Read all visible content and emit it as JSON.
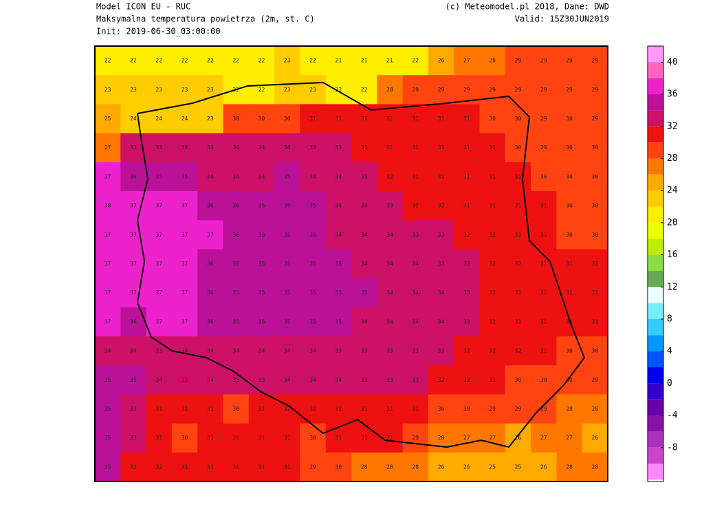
{
  "header": {
    "model": "Model ICON EU - RUC",
    "field": "Maksymalna temperatura powietrza (2m, st. C)",
    "init": "Init: 2019-06-30_03:00:00",
    "credit": "(c) Meteomodel.pl 2018, Dane: DWD",
    "valid": "Valid: 15Z30JUN2019"
  },
  "grid": [
    [
      22,
      22,
      22,
      22,
      22,
      22,
      22,
      23,
      22,
      21,
      21,
      21,
      22,
      26,
      27,
      28,
      29,
      29,
      29,
      29
    ],
    [
      23,
      23,
      23,
      23,
      23,
      22,
      22,
      23,
      23,
      22,
      22,
      28,
      29,
      29,
      29,
      29,
      29,
      29,
      29,
      29
    ],
    [
      25,
      24,
      24,
      24,
      23,
      30,
      30,
      30,
      31,
      31,
      31,
      31,
      31,
      31,
      31,
      30,
      30,
      29,
      30,
      29
    ],
    [
      27,
      33,
      33,
      34,
      34,
      34,
      34,
      34,
      33,
      33,
      31,
      31,
      31,
      31,
      31,
      31,
      30,
      29,
      30,
      30
    ],
    [
      37,
      36,
      35,
      35,
      34,
      34,
      34,
      35,
      34,
      34,
      33,
      32,
      31,
      31,
      31,
      31,
      31,
      30,
      30,
      30
    ],
    [
      38,
      37,
      37,
      37,
      36,
      36,
      35,
      35,
      35,
      34,
      33,
      33,
      32,
      32,
      31,
      31,
      31,
      31,
      30,
      30
    ],
    [
      37,
      37,
      37,
      37,
      37,
      36,
      35,
      35,
      35,
      34,
      34,
      34,
      33,
      33,
      32,
      32,
      31,
      31,
      30,
      30
    ],
    [
      37,
      37,
      37,
      37,
      36,
      35,
      35,
      35,
      35,
      35,
      34,
      34,
      34,
      33,
      33,
      32,
      32,
      31,
      31,
      31
    ],
    [
      37,
      37,
      37,
      37,
      36,
      35,
      35,
      35,
      35,
      35,
      35,
      34,
      34,
      34,
      33,
      32,
      31,
      31,
      31,
      31
    ],
    [
      37,
      36,
      37,
      37,
      36,
      35,
      35,
      35,
      35,
      35,
      34,
      34,
      34,
      34,
      33,
      32,
      31,
      31,
      31,
      31
    ],
    [
      34,
      34,
      33,
      34,
      34,
      34,
      34,
      34,
      34,
      33,
      33,
      33,
      33,
      33,
      32,
      32,
      32,
      31,
      30,
      30
    ],
    [
      35,
      35,
      34,
      33,
      34,
      33,
      33,
      34,
      34,
      34,
      33,
      33,
      33,
      32,
      32,
      31,
      30,
      30,
      30,
      29
    ],
    [
      35,
      33,
      31,
      31,
      31,
      30,
      31,
      32,
      32,
      32,
      31,
      31,
      31,
      30,
      30,
      29,
      29,
      29,
      28,
      28
    ],
    [
      35,
      33,
      31,
      30,
      31,
      31,
      31,
      31,
      30,
      31,
      31,
      31,
      29,
      28,
      27,
      27,
      26,
      27,
      27,
      26
    ],
    [
      35,
      32,
      32,
      31,
      31,
      31,
      31,
      31,
      29,
      30,
      28,
      28,
      28,
      26,
      26,
      25,
      25,
      26,
      28,
      28
    ]
  ],
  "colorbar": {
    "labels": [
      40,
      36,
      32,
      28,
      24,
      20,
      16,
      12,
      8,
      4,
      0,
      -4,
      -8
    ],
    "colors": [
      "#ff99ff",
      "#ff66bb",
      "#ee22cc",
      "#bb1199",
      "#cc1166",
      "#ee1111",
      "#ff4411",
      "#ff7700",
      "#ffaa00",
      "#ffcc00",
      "#ffee00",
      "#eeff00",
      "#bbee00",
      "#88dd44",
      "#66aa55",
      "#eeffff",
      "#77eeff",
      "#33ccff",
      "#0099ff",
      "#0055ff",
      "#0000ee",
      "#3300cc",
      "#6600aa",
      "#8811aa",
      "#aa33bb",
      "#cc44cc",
      "#ff88ff"
    ]
  }
}
